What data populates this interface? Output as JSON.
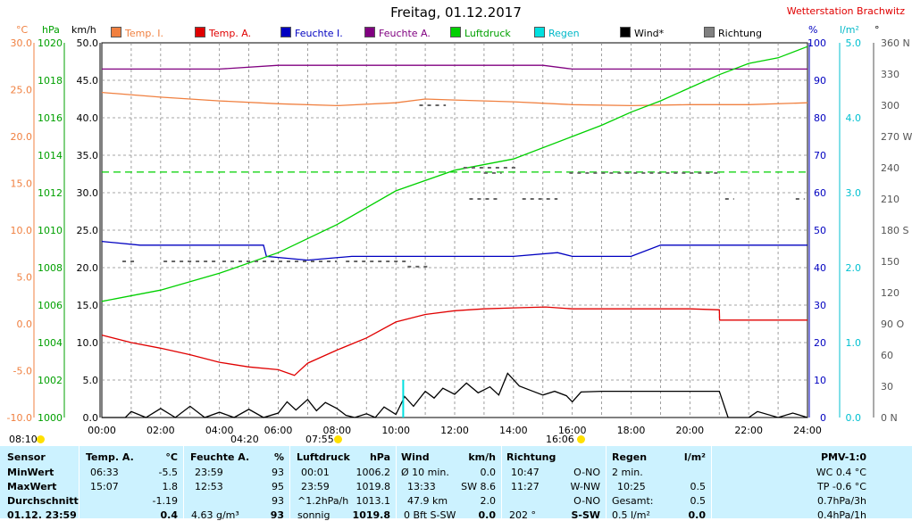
{
  "title": "Freitag, 01.12.2017",
  "station": "Wetterstation Brachwitz",
  "legend": [
    {
      "label": "Temp. I.",
      "color": "#f08040"
    },
    {
      "label": "Temp. A.",
      "color": "#e00000"
    },
    {
      "label": "Feuchte I.",
      "color": "#0000c0"
    },
    {
      "label": "Feuchte A.",
      "color": "#800080"
    },
    {
      "label": "Luftdruck",
      "color": "#00d000"
    },
    {
      "label": "Regen",
      "color": "#00e0e0"
    },
    {
      "label": "Wind*",
      "color": "#000000"
    },
    {
      "label": "Richtung",
      "color": "#808080"
    }
  ],
  "units": {
    "temp": "°C",
    "press": "hPa",
    "wind": "km/h",
    "hum": "%",
    "rain": "l/m²",
    "dir": "°"
  },
  "axes": {
    "temp_ticks": [
      "30.0",
      "25.0",
      "20.0",
      "15.0",
      "10.0",
      "5.0",
      "0.0",
      "-5.0",
      "-10.0"
    ],
    "press_ticks": [
      "1020",
      "1018",
      "1016",
      "1014",
      "1012",
      "1010",
      "1008",
      "1006",
      "1004",
      "1002",
      "1000"
    ],
    "wind_ticks": [
      "50.0",
      "45.0",
      "40.0",
      "35.0",
      "30.0",
      "25.0",
      "20.0",
      "15.0",
      "10.0",
      "5.0",
      "0.0"
    ],
    "hum_ticks": [
      "100",
      "90",
      "80",
      "70",
      "60",
      "50",
      "40",
      "30",
      "20",
      "10",
      "0"
    ],
    "rain_ticks": [
      "5.0",
      "4.0",
      "3.0",
      "2.0",
      "1.0",
      "0.0"
    ],
    "dir_ticks": [
      "360 N",
      "330",
      "300",
      "270 W",
      "240",
      "210",
      "180 S",
      "150",
      "120",
      "90 O",
      "60",
      "30",
      "0 N"
    ],
    "x_ticks": [
      "00:00",
      "02:00",
      "04:00",
      "06:00",
      "08:00",
      "10:00",
      "12:00",
      "14:00",
      "16:00",
      "18:00",
      "20:00",
      "22:00",
      "24:00"
    ]
  },
  "sunbar": {
    "sunrise": "08:10",
    "tmin": "04:20",
    "sunrise2": "07:55",
    "sunset": "16:06"
  },
  "chart_data": {
    "type": "line",
    "x_unit": "hours",
    "xlim": [
      0,
      24
    ],
    "series": [
      {
        "name": "Temp. A.",
        "axis": "°C",
        "color": "#e00000",
        "x": [
          0,
          1,
          2,
          3,
          4,
          5,
          6,
          6.55,
          7,
          8,
          9,
          10,
          11,
          12,
          13,
          14,
          15.1,
          16,
          17,
          18,
          19,
          20,
          21,
          21.01,
          22,
          23,
          24
        ],
        "y": [
          -1.2,
          -2.0,
          -2.6,
          -3.3,
          -4.1,
          -4.6,
          -4.9,
          -5.5,
          -4.2,
          -2.8,
          -1.5,
          0.2,
          1.0,
          1.4,
          1.6,
          1.7,
          1.8,
          1.6,
          1.6,
          1.6,
          1.6,
          1.6,
          1.5,
          0.4,
          0.4,
          0.4,
          0.4
        ]
      },
      {
        "name": "Temp. I.",
        "axis": "°C",
        "color": "#f08040",
        "x": [
          0,
          2,
          4,
          6,
          8,
          10,
          11,
          12,
          14,
          16,
          18,
          20,
          22,
          24
        ],
        "y": [
          24.7,
          24.2,
          23.8,
          23.5,
          23.3,
          23.6,
          24.0,
          23.9,
          23.7,
          23.4,
          23.3,
          23.4,
          23.4,
          23.6
        ]
      },
      {
        "name": "Feuchte A.",
        "axis": "%",
        "color": "#800080",
        "x": [
          0,
          4,
          6,
          7,
          9,
          12,
          13,
          15,
          16,
          18,
          20,
          22,
          24
        ],
        "y": [
          93,
          93,
          94,
          94,
          94,
          94,
          94,
          94,
          93,
          93,
          93,
          93,
          93
        ]
      },
      {
        "name": "Feuchte I.",
        "axis": "%",
        "color": "#0000c0",
        "x": [
          0,
          1.3,
          5.5,
          5.6,
          7,
          8.5,
          10,
          12,
          14,
          15.5,
          16,
          18,
          19,
          20,
          22,
          24
        ],
        "y": [
          47,
          46,
          46,
          43,
          42,
          43,
          43,
          43,
          43,
          44,
          43,
          43,
          46,
          46,
          46,
          46
        ]
      },
      {
        "name": "Luftdruck",
        "axis": "hPa",
        "color": "#00d000",
        "x": [
          0,
          2,
          4,
          6,
          8,
          10,
          12,
          14,
          16,
          17,
          18,
          19,
          20,
          21,
          22,
          23,
          24
        ],
        "y": [
          1006.2,
          1006.8,
          1007.7,
          1008.8,
          1010.3,
          1012.1,
          1013.2,
          1013.8,
          1015.0,
          1015.6,
          1016.3,
          1016.9,
          1017.6,
          1018.3,
          1018.9,
          1019.2,
          1019.8
        ]
      },
      {
        "name": "Luftdruck Mittel",
        "axis": "hPa",
        "color": "#00d000",
        "dashed": true,
        "x": [
          0,
          24
        ],
        "y": [
          1013.1,
          1013.1
        ]
      },
      {
        "name": "Wind*",
        "axis": "km/h",
        "color": "#000000",
        "x": [
          0,
          0.8,
          1,
          1.5,
          2,
          2.5,
          3,
          3.5,
          4,
          4.5,
          5,
          5.5,
          6,
          6.3,
          6.6,
          7,
          7.3,
          7.6,
          8,
          8.3,
          8.6,
          9,
          9.3,
          9.6,
          10,
          10.3,
          10.6,
          11,
          11.3,
          11.6,
          12,
          12.4,
          12.8,
          13.2,
          13.5,
          13.8,
          14.2,
          14.6,
          15,
          15.4,
          15.8,
          16,
          16.3,
          17,
          18,
          19,
          20,
          21,
          21.3,
          22,
          22.3,
          23,
          23.5,
          24
        ],
        "y": [
          0,
          0,
          0.8,
          0,
          1.2,
          0,
          1.5,
          0,
          0.7,
          0,
          1.1,
          0,
          0.6,
          2.1,
          1.0,
          2.4,
          0.9,
          2.0,
          1.2,
          0.3,
          0,
          0.5,
          0,
          1.4,
          0.4,
          2.8,
          1.5,
          3.5,
          2.6,
          3.9,
          3.1,
          4.6,
          3.3,
          4.1,
          3.0,
          5.9,
          4.2,
          3.6,
          3.0,
          3.5,
          2.9,
          2.1,
          3.4,
          3.5,
          3.5,
          3.5,
          3.5,
          3.5,
          0,
          0,
          0.8,
          0,
          0.6,
          0
        ]
      },
      {
        "name": "Regen",
        "axis": "l/m²",
        "color": "#00e0e0",
        "x": [
          10.25,
          10.25
        ],
        "y": [
          0,
          0.5
        ]
      }
    ]
  },
  "table": {
    "row_labels": [
      "Sensor",
      "MinWert",
      "MaxWert",
      "Durchschnitt",
      "01.12. 23:59"
    ],
    "temp": {
      "head": "Temp. A.",
      "unit": "°C",
      "min_t": "06:33",
      "min_v": "-5.5",
      "max_t": "15:07",
      "max_v": "1.8",
      "avg": "-1.19",
      "cur": "0.4"
    },
    "hum": {
      "head": "Feuchte A.",
      "unit": "%",
      "min_t": "23:59",
      "min_v": "93",
      "max_t": "12:53",
      "max_v": "95",
      "avg": "93",
      "cur_extra": "4.63 g/m³",
      "cur": "93"
    },
    "press": {
      "head": "Luftdruck",
      "unit": "hPa",
      "min_t": "00:01",
      "min_v": "1006.2",
      "max_t": "23:59",
      "max_v": "1019.8",
      "trend": "^1.2hPa/h",
      "avg": "1013.1",
      "cur_extra": "sonnig",
      "cur": "1019.8"
    },
    "wind": {
      "head": "Wind",
      "unit": "km/h",
      "r1a": "Ø 10 min.",
      "r1b": "0.0",
      "r2a": "13:33",
      "r2b": "SW 8.6",
      "r3a": "47.9 km",
      "r3b": "2.0",
      "r4a": "0 Bft S-SW",
      "r4b": "0.0"
    },
    "dir": {
      "head": "Richtung",
      "r1a": "10:47",
      "r1b": "O-NO",
      "r2a": "11:27",
      "r2b": "W-NW",
      "r3b": "O-NO",
      "r4a": "202 °",
      "r4b": "S-SW"
    },
    "rain": {
      "head": "Regen",
      "unit": "l/m²",
      "r1a": "2 min.",
      "r2a": "10:25",
      "r2b": "0.5",
      "r3a": "Gesamt:",
      "r3b": "0.5",
      "r4a": "0.5 l/m²",
      "r4b": "0.0"
    },
    "pmv": {
      "head": "PMV-1:0",
      "r1": "WC 0.4 °C",
      "r2": "TP -0.6 °C",
      "r3": "0.7hPa/3h",
      "r4": "0.4hPa/1h"
    }
  }
}
